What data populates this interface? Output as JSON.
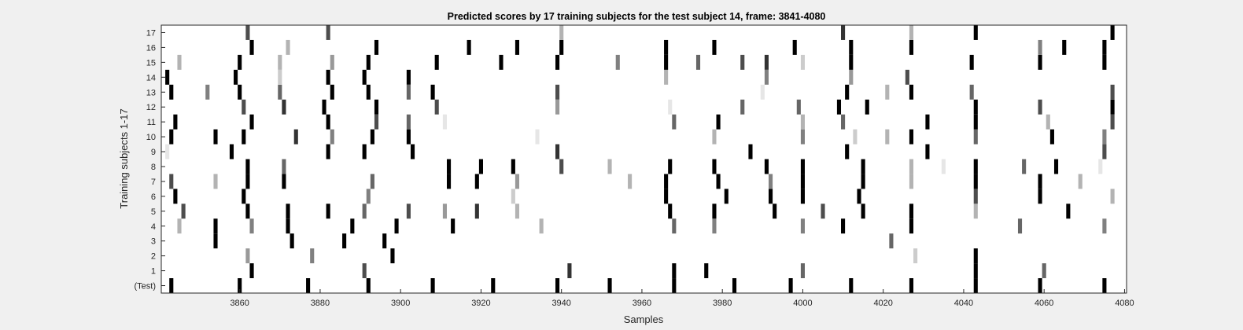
{
  "chart_data": {
    "type": "heatmap",
    "title": "Predicted scores by 17 training subjects for the test subject 14, frame: 3841-4080",
    "xlabel": "Samples",
    "ylabel": "Training subjects 1-17",
    "xlim": [
      3841,
      4080
    ],
    "x_ticks": [
      3860,
      3880,
      3900,
      3920,
      3940,
      3960,
      3980,
      4000,
      4020,
      4040,
      4060,
      4080
    ],
    "y_categories": [
      "(Test)",
      "1",
      "2",
      "3",
      "4",
      "5",
      "6",
      "7",
      "8",
      "9",
      "10",
      "11",
      "12",
      "13",
      "14",
      "15",
      "16",
      "17"
    ],
    "colormap": "white-to-black (higher score = darker)",
    "grid": false,
    "rows": [
      {
        "label": "(Test)",
        "marks": [
          [
            3843,
            1
          ],
          [
            3860,
            1
          ],
          [
            3877,
            1
          ],
          [
            3892,
            1
          ],
          [
            3908,
            1
          ],
          [
            3923,
            1
          ],
          [
            3939,
            1
          ],
          [
            3952,
            1
          ],
          [
            3968,
            1
          ],
          [
            3983,
            1
          ],
          [
            3997,
            1
          ],
          [
            4012,
            1
          ],
          [
            4027,
            1
          ],
          [
            4043,
            1
          ],
          [
            4059,
            1
          ],
          [
            4075,
            1
          ]
        ]
      },
      {
        "label": "1",
        "marks": [
          [
            3863,
            1
          ],
          [
            3891,
            0.7
          ],
          [
            3942,
            0.8
          ],
          [
            3968,
            1
          ],
          [
            3976,
            1
          ],
          [
            4000,
            0.6
          ],
          [
            4043,
            1
          ],
          [
            4060,
            0.6
          ]
        ]
      },
      {
        "label": "2",
        "marks": [
          [
            3862,
            0.4
          ],
          [
            3878,
            0.5
          ],
          [
            3898,
            1
          ],
          [
            4028,
            0.2
          ],
          [
            4043,
            1
          ]
        ]
      },
      {
        "label": "3",
        "marks": [
          [
            3854,
            1
          ],
          [
            3873,
            1
          ],
          [
            3886,
            1
          ],
          [
            3896,
            1
          ],
          [
            4022,
            0.6
          ]
        ]
      },
      {
        "label": "4",
        "marks": [
          [
            3845,
            0.3
          ],
          [
            3854,
            1
          ],
          [
            3863,
            0.5
          ],
          [
            3872,
            1
          ],
          [
            3888,
            1
          ],
          [
            3899,
            1
          ],
          [
            3913,
            1
          ],
          [
            3935,
            0.3
          ],
          [
            3968,
            0.6
          ],
          [
            3978,
            0.5
          ],
          [
            4000,
            0.5
          ],
          [
            4010,
            1
          ],
          [
            4027,
            1
          ],
          [
            4054,
            0.6
          ],
          [
            4075,
            0.5
          ]
        ]
      },
      {
        "label": "5",
        "marks": [
          [
            3846,
            0.7
          ],
          [
            3862,
            1
          ],
          [
            3872,
            1
          ],
          [
            3882,
            1
          ],
          [
            3891,
            0.6
          ],
          [
            3902,
            0.7
          ],
          [
            3911,
            0.4
          ],
          [
            3919,
            0.8
          ],
          [
            3929,
            0.3
          ],
          [
            3967,
            1
          ],
          [
            3978,
            1
          ],
          [
            3993,
            1
          ],
          [
            4005,
            0.7
          ],
          [
            4015,
            1
          ],
          [
            4027,
            1
          ],
          [
            4043,
            0.3
          ],
          [
            4066,
            1
          ]
        ]
      },
      {
        "label": "6",
        "marks": [
          [
            3844,
            1
          ],
          [
            3861,
            1
          ],
          [
            3892,
            0.5
          ],
          [
            3928,
            0.2
          ],
          [
            3966,
            1
          ],
          [
            3981,
            1
          ],
          [
            3992,
            1
          ],
          [
            4000,
            1
          ],
          [
            4014,
            1
          ],
          [
            4043,
            0.7
          ],
          [
            4059,
            1
          ],
          [
            4077,
            0.3
          ]
        ]
      },
      {
        "label": "7",
        "marks": [
          [
            3843,
            0.7
          ],
          [
            3854,
            0.3
          ],
          [
            3862,
            1
          ],
          [
            3871,
            1
          ],
          [
            3893,
            0.6
          ],
          [
            3912,
            1
          ],
          [
            3919,
            1
          ],
          [
            3929,
            0.4
          ],
          [
            3957,
            0.3
          ],
          [
            3966,
            1
          ],
          [
            3979,
            1
          ],
          [
            3992,
            0.5
          ],
          [
            4000,
            1
          ],
          [
            4015,
            1
          ],
          [
            4027,
            0.3
          ],
          [
            4043,
            1
          ],
          [
            4059,
            1
          ],
          [
            4069,
            0.3
          ]
        ]
      },
      {
        "label": "8",
        "marks": [
          [
            3862,
            1
          ],
          [
            3871,
            0.6
          ],
          [
            3912,
            1
          ],
          [
            3920,
            1
          ],
          [
            3928,
            1
          ],
          [
            3940,
            0.7
          ],
          [
            3952,
            0.3
          ],
          [
            3967,
            1
          ],
          [
            3978,
            1
          ],
          [
            3991,
            1
          ],
          [
            4000,
            1
          ],
          [
            4015,
            1
          ],
          [
            4027,
            0.3
          ],
          [
            4035,
            0.1
          ],
          [
            4043,
            1
          ],
          [
            4055,
            0.6
          ],
          [
            4063,
            1
          ],
          [
            4074,
            0.1
          ]
        ]
      },
      {
        "label": "9",
        "marks": [
          [
            3842,
            0.1
          ],
          [
            3858,
            1
          ],
          [
            3882,
            1
          ],
          [
            3891,
            1
          ],
          [
            3903,
            1
          ],
          [
            3939,
            0.8
          ],
          [
            3987,
            1
          ],
          [
            4011,
            1
          ],
          [
            4031,
            1
          ],
          [
            4075,
            0.7
          ]
        ]
      },
      {
        "label": "10",
        "marks": [
          [
            3843,
            1
          ],
          [
            3854,
            1
          ],
          [
            3861,
            1
          ],
          [
            3874,
            0.8
          ],
          [
            3883,
            0.5
          ],
          [
            3893,
            1
          ],
          [
            3902,
            1
          ],
          [
            3934,
            0.1
          ],
          [
            3978,
            0.3
          ],
          [
            4000,
            0.5
          ],
          [
            4013,
            0.2
          ],
          [
            4021,
            0.3
          ],
          [
            4027,
            1
          ],
          [
            4043,
            0.6
          ],
          [
            4062,
            1
          ],
          [
            4075,
            0.5
          ]
        ]
      },
      {
        "label": "11",
        "marks": [
          [
            3844,
            1
          ],
          [
            3863,
            1
          ],
          [
            3882,
            1
          ],
          [
            3894,
            0.7
          ],
          [
            3902,
            0.6
          ],
          [
            3911,
            0.1
          ],
          [
            3968,
            0.6
          ],
          [
            3979,
            1
          ],
          [
            4000,
            0.3
          ],
          [
            4010,
            0.6
          ],
          [
            4031,
            1
          ],
          [
            4043,
            1
          ],
          [
            4061,
            0.3
          ],
          [
            4077,
            0.7
          ]
        ]
      },
      {
        "label": "12",
        "marks": [
          [
            3861,
            0.7
          ],
          [
            3871,
            0.8
          ],
          [
            3881,
            1
          ],
          [
            3894,
            1
          ],
          [
            3909,
            0.7
          ],
          [
            3939,
            0.4
          ],
          [
            3967,
            0.1
          ],
          [
            3985,
            0.6
          ],
          [
            3999,
            0.6
          ],
          [
            4009,
            1
          ],
          [
            4016,
            1
          ],
          [
            4043,
            1
          ],
          [
            4059,
            0.7
          ],
          [
            4077,
            1
          ]
        ]
      },
      {
        "label": "13",
        "marks": [
          [
            3843,
            1
          ],
          [
            3852,
            0.5
          ],
          [
            3860,
            1
          ],
          [
            3870,
            0.6
          ],
          [
            3883,
            1
          ],
          [
            3892,
            1
          ],
          [
            3902,
            0.6
          ],
          [
            3908,
            1
          ],
          [
            3939,
            0.7
          ],
          [
            3990,
            0.1
          ],
          [
            4011,
            1
          ],
          [
            4021,
            0.3
          ],
          [
            4027,
            1
          ],
          [
            4042,
            0.6
          ],
          [
            4077,
            0.7
          ]
        ]
      },
      {
        "label": "14",
        "marks": [
          [
            3842,
            1
          ],
          [
            3859,
            1
          ],
          [
            3870,
            0.2
          ],
          [
            3882,
            1
          ],
          [
            3891,
            1
          ],
          [
            3902,
            1
          ],
          [
            3966,
            0.3
          ],
          [
            3991,
            0.5
          ],
          [
            4012,
            0.4
          ],
          [
            4026,
            0.7
          ]
        ]
      },
      {
        "label": "15",
        "marks": [
          [
            3845,
            0.3
          ],
          [
            3860,
            1
          ],
          [
            3870,
            0.3
          ],
          [
            3883,
            0.4
          ],
          [
            3892,
            1
          ],
          [
            3909,
            1
          ],
          [
            3925,
            1
          ],
          [
            3939,
            1
          ],
          [
            3954,
            0.5
          ],
          [
            3966,
            1
          ],
          [
            3974,
            0.6
          ],
          [
            3985,
            0.7
          ],
          [
            3991,
            0.8
          ],
          [
            4000,
            0.2
          ],
          [
            4012,
            1
          ],
          [
            4042,
            1
          ],
          [
            4059,
            1
          ],
          [
            4075,
            1
          ]
        ]
      },
      {
        "label": "16",
        "marks": [
          [
            3863,
            1
          ],
          [
            3872,
            0.3
          ],
          [
            3894,
            1
          ],
          [
            3917,
            1
          ],
          [
            3929,
            1
          ],
          [
            3940,
            1
          ],
          [
            3966,
            1
          ],
          [
            3978,
            1
          ],
          [
            3998,
            1
          ],
          [
            4012,
            1
          ],
          [
            4027,
            1
          ],
          [
            4059,
            0.5
          ],
          [
            4065,
            1
          ],
          [
            4075,
            1
          ]
        ]
      },
      {
        "label": "17",
        "marks": [
          [
            3862,
            0.7
          ],
          [
            3882,
            0.7
          ],
          [
            3940,
            0.3
          ],
          [
            4010,
            0.8
          ],
          [
            4027,
            0.3
          ],
          [
            4043,
            1
          ],
          [
            4077,
            1
          ]
        ]
      }
    ]
  }
}
